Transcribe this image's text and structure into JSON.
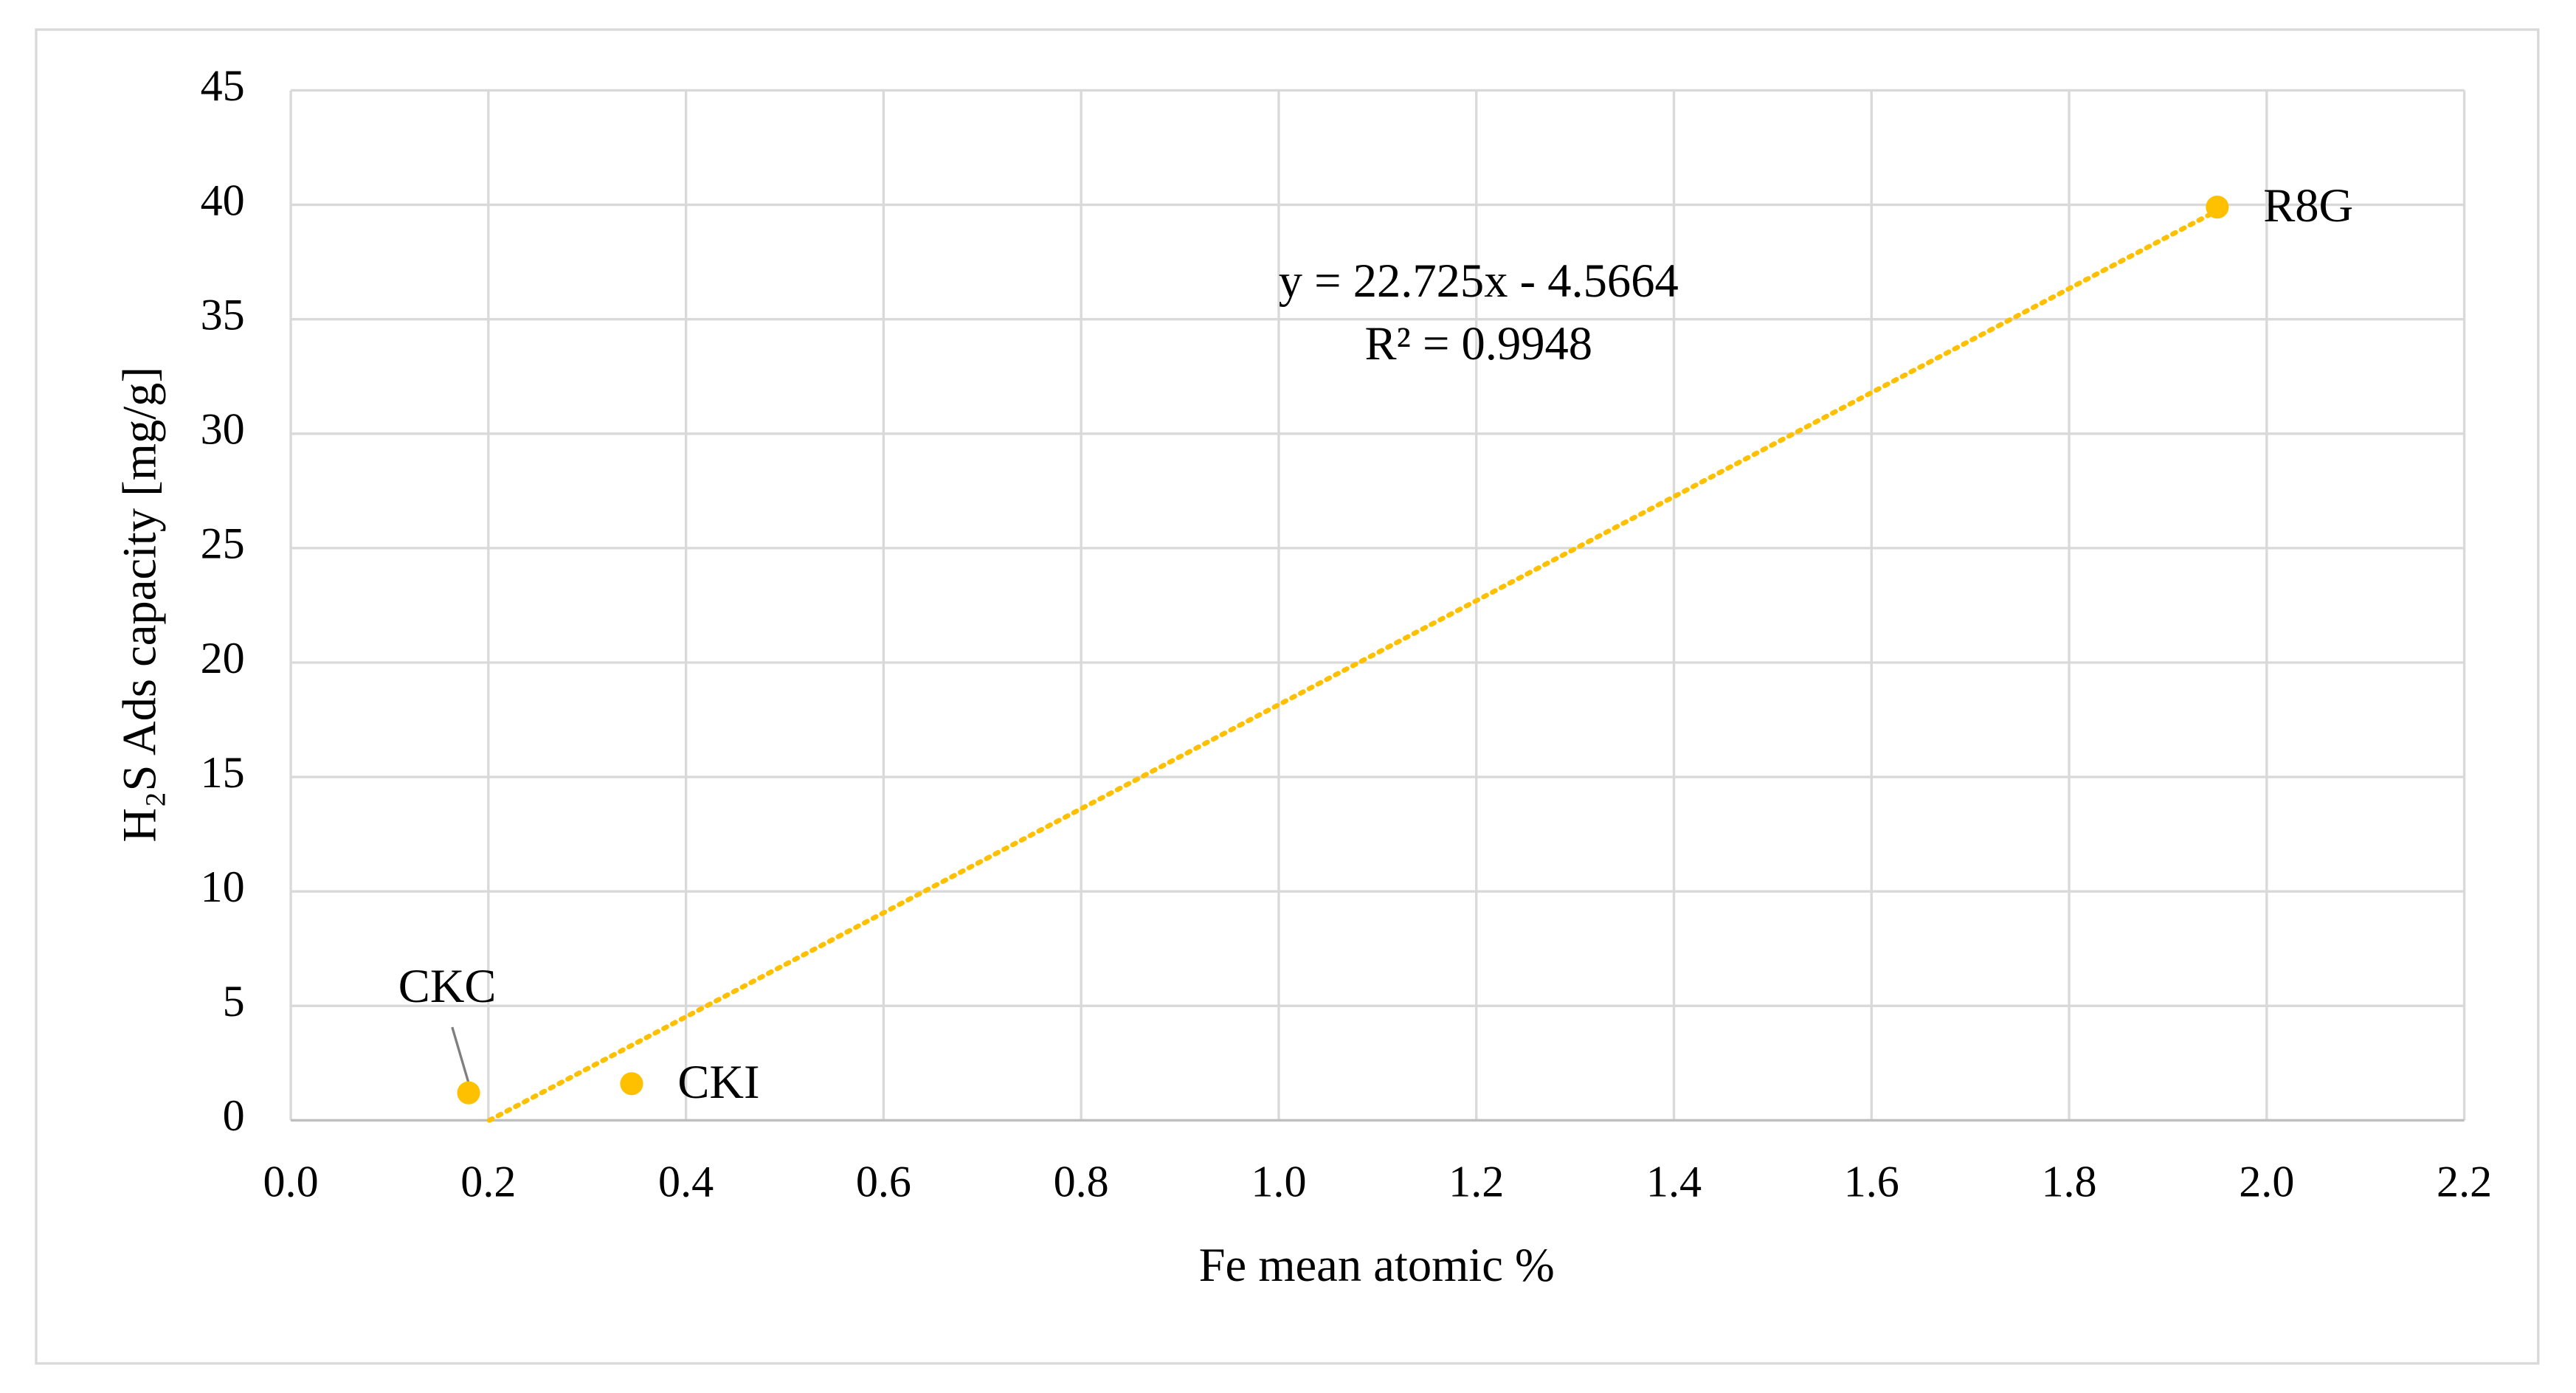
{
  "chart_data": {
    "type": "scatter",
    "xlabel": "Fe mean atomic %",
    "ylabel": "H₂S Ads capacity [mg/g]",
    "series": [
      {
        "color": "#ffc000",
        "x": [
          0.18,
          0.345,
          1.95
        ],
        "values": [
          1.2,
          1.6,
          39.9
        ],
        "labels": [
          "CKC",
          "CKI",
          "R8G"
        ]
      }
    ],
    "trendline": {
      "equation": "y = 22.725x - 4.5664",
      "r_squared": "R² = 0.9948",
      "slope": 22.725,
      "intercept": -4.5664,
      "color": "#ffc000"
    },
    "xlim": [
      0,
      2.2
    ],
    "xticks": [
      {
        "value": 0,
        "label": "0.0"
      },
      0.2,
      0.4,
      0.6,
      0.8,
      {
        "value": 1,
        "label": "1.0"
      },
      1.2,
      1.4,
      1.6,
      1.8,
      {
        "value": 2,
        "label": "2.0"
      },
      2.2
    ],
    "ylim": [
      0,
      45
    ],
    "yticks": [
      0,
      5,
      10,
      15,
      20,
      25,
      30,
      35,
      40,
      45
    ],
    "grid": true
  }
}
